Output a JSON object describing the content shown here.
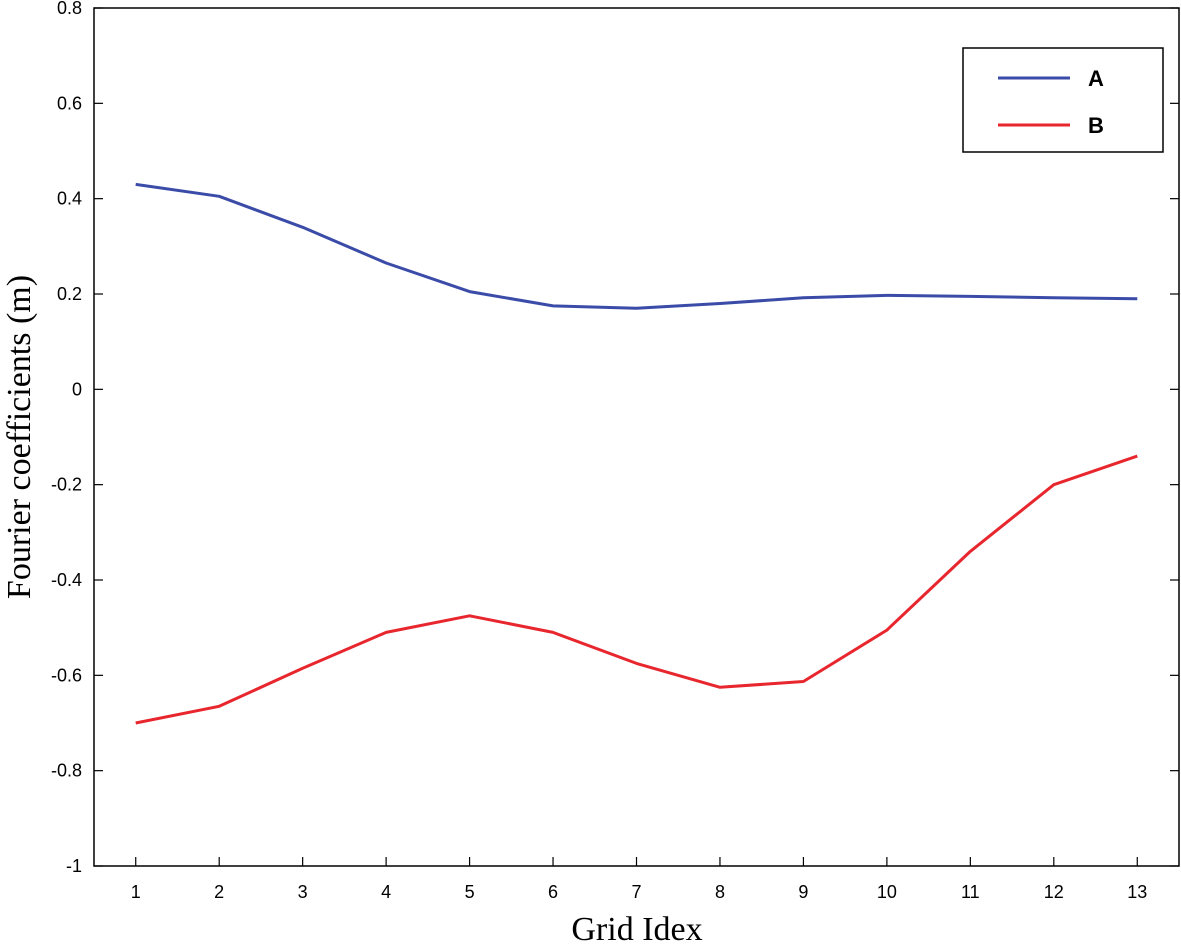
{
  "chart_data": {
    "type": "line",
    "title": "",
    "xlabel": "Grid Idex",
    "ylabel": "Fourier coefficients (m)",
    "x": [
      1,
      2,
      3,
      4,
      5,
      6,
      7,
      8,
      9,
      10,
      11,
      12,
      13
    ],
    "xlim": [
      0.5,
      13.5
    ],
    "ylim": [
      -1,
      0.8
    ],
    "x_ticks": [
      "1",
      "2",
      "3",
      "4",
      "5",
      "6",
      "7",
      "8",
      "9",
      "10",
      "11",
      "12",
      "13"
    ],
    "y_ticks": [
      "0.8",
      "0.6",
      "0.4",
      "0.2",
      "0",
      "-0.2",
      "-0.4",
      "-0.6",
      "-0.8",
      "-1"
    ],
    "grid": false,
    "legend_position": "top-right",
    "series": [
      {
        "name": "A",
        "color": "#3b4ba8",
        "values": [
          0.43,
          0.405,
          0.34,
          0.265,
          0.205,
          0.175,
          0.17,
          0.18,
          0.192,
          0.197,
          0.195,
          0.192,
          0.19
        ]
      },
      {
        "name": "B",
        "color": "#e8262d",
        "values": [
          -0.7,
          -0.665,
          -0.585,
          -0.51,
          -0.475,
          -0.51,
          -0.575,
          -0.625,
          -0.613,
          -0.505,
          -0.34,
          -0.2,
          -0.14
        ]
      }
    ]
  }
}
